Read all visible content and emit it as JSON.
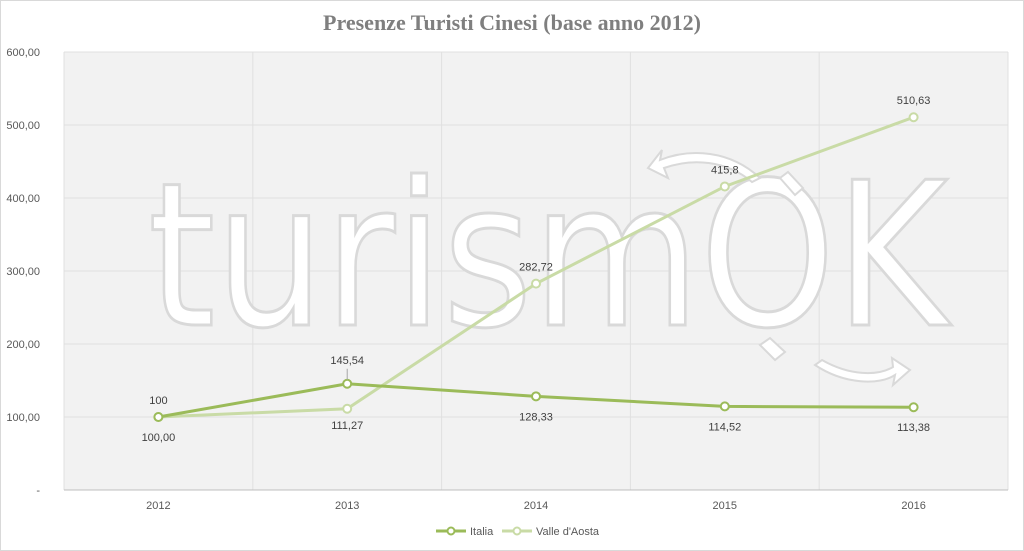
{
  "chart_data": {
    "type": "line",
    "title": "Presenze Turisti Cinesi (base anno 2012)",
    "xlabel": "",
    "ylabel": "",
    "categories": [
      "2012",
      "2013",
      "2014",
      "2015",
      "2016"
    ],
    "ylim": [
      0,
      600
    ],
    "y_ticks": [
      "-",
      "100,00",
      "200,00",
      "300,00",
      "400,00",
      "500,00",
      "600,00"
    ],
    "grid": true,
    "legend_position": "bottom",
    "series": [
      {
        "name": "Italia",
        "color": "#9bbb59",
        "values": [
          100,
          145.54,
          128.33,
          114.52,
          113.38
        ],
        "labels": [
          "100,00",
          "145,54",
          "128,33",
          "114,52",
          "113,38"
        ]
      },
      {
        "name": "Valle d'Aosta",
        "color": "#c9dba6",
        "values": [
          100,
          111.27,
          282.72,
          415.8,
          510.63
        ],
        "labels": [
          "100",
          "111,27",
          "282,72",
          "415,8",
          "510,63"
        ]
      }
    ]
  },
  "watermark": {
    "text": "turismOK",
    "color": "#d9d9d9"
  }
}
